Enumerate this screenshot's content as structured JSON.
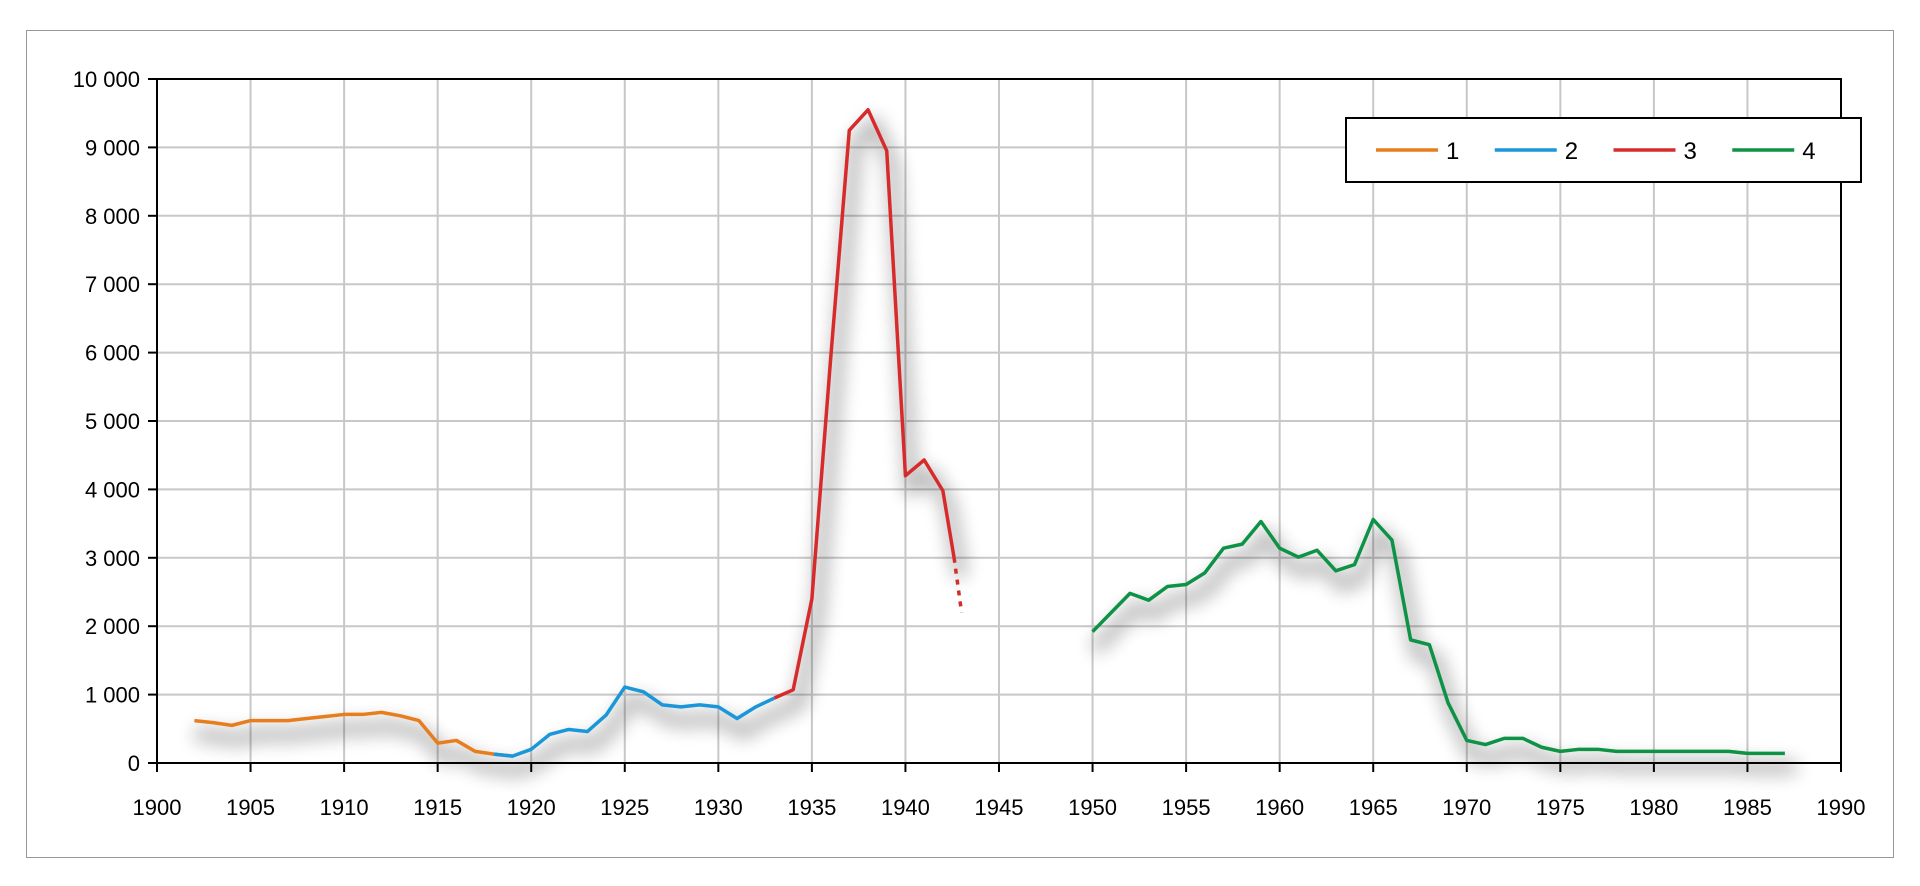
{
  "chart_data": {
    "type": "line",
    "title": "",
    "xlabel": "",
    "ylabel": "",
    "xlim": [
      1900,
      1990
    ],
    "ylim": [
      0,
      10000
    ],
    "x_ticks": [
      1900,
      1905,
      1910,
      1915,
      1920,
      1925,
      1930,
      1935,
      1940,
      1945,
      1950,
      1955,
      1960,
      1965,
      1970,
      1975,
      1980,
      1985,
      1990
    ],
    "x_tick_labels": [
      "1900",
      "1905",
      "1910",
      "1915",
      "1920",
      "1925",
      "1930",
      "1935",
      "1940",
      "1945",
      "1950",
      "1955",
      "1960",
      "1965",
      "1970",
      "1975",
      "1980",
      "1985",
      "1990"
    ],
    "y_ticks": [
      0,
      1000,
      2000,
      3000,
      4000,
      5000,
      6000,
      7000,
      8000,
      9000,
      10000
    ],
    "y_tick_labels": [
      "0",
      "1 000",
      "2 000",
      "3 000",
      "4 000",
      "5 000",
      "6 000",
      "7 000",
      "8 000",
      "9 000",
      "10 000"
    ],
    "grid": true,
    "legend_position": "top-right",
    "series": [
      {
        "name": "1",
        "color": "#e87d1e",
        "points": [
          [
            1902,
            620
          ],
          [
            1903,
            590
          ],
          [
            1904,
            550
          ],
          [
            1905,
            620
          ],
          [
            1906,
            620
          ],
          [
            1907,
            620
          ],
          [
            1908,
            650
          ],
          [
            1909,
            680
          ],
          [
            1910,
            710
          ],
          [
            1911,
            710
          ],
          [
            1912,
            740
          ],
          [
            1913,
            690
          ],
          [
            1914,
            620
          ],
          [
            1915,
            290
          ],
          [
            1916,
            330
          ],
          [
            1917,
            170
          ],
          [
            1918,
            130
          ],
          [
            1919,
            100
          ]
        ]
      },
      {
        "name": "2",
        "color": "#1a97d8",
        "points": [
          [
            1918,
            130
          ],
          [
            1919,
            100
          ],
          [
            1920,
            200
          ],
          [
            1921,
            420
          ],
          [
            1922,
            490
          ],
          [
            1923,
            460
          ],
          [
            1924,
            700
          ],
          [
            1925,
            1110
          ],
          [
            1926,
            1040
          ],
          [
            1927,
            850
          ],
          [
            1928,
            820
          ],
          [
            1929,
            850
          ],
          [
            1930,
            820
          ],
          [
            1931,
            650
          ],
          [
            1932,
            820
          ],
          [
            1933,
            950
          ]
        ]
      },
      {
        "name": "3",
        "color": "#d72b2b",
        "points": [
          [
            1933,
            950
          ],
          [
            1934,
            1070
          ],
          [
            1935,
            2400
          ],
          [
            1936,
            5900
          ],
          [
            1937,
            9250
          ],
          [
            1938,
            9550
          ],
          [
            1939,
            8950
          ],
          [
            1940,
            4200
          ],
          [
            1941,
            4430
          ],
          [
            1942,
            3980
          ],
          [
            1942.6,
            3000
          ]
        ],
        "dashed_points": [
          [
            1942.6,
            3000
          ],
          [
            1943,
            2200
          ]
        ]
      },
      {
        "name": "4",
        "color": "#0e9245",
        "points": [
          [
            1950,
            1920
          ],
          [
            1951,
            2200
          ],
          [
            1952,
            2480
          ],
          [
            1953,
            2380
          ],
          [
            1954,
            2580
          ],
          [
            1955,
            2610
          ],
          [
            1956,
            2780
          ],
          [
            1957,
            3140
          ],
          [
            1958,
            3200
          ],
          [
            1959,
            3530
          ],
          [
            1960,
            3140
          ],
          [
            1961,
            3010
          ],
          [
            1962,
            3110
          ],
          [
            1963,
            2810
          ],
          [
            1964,
            2900
          ],
          [
            1965,
            3560
          ],
          [
            1966,
            3260
          ],
          [
            1967,
            1800
          ],
          [
            1968,
            1730
          ],
          [
            1969,
            880
          ],
          [
            1970,
            330
          ],
          [
            1971,
            270
          ],
          [
            1972,
            360
          ],
          [
            1973,
            360
          ],
          [
            1974,
            230
          ],
          [
            1975,
            170
          ],
          [
            1976,
            200
          ],
          [
            1977,
            200
          ],
          [
            1978,
            170
          ],
          [
            1979,
            170
          ],
          [
            1980,
            170
          ],
          [
            1981,
            170
          ],
          [
            1982,
            170
          ],
          [
            1983,
            170
          ],
          [
            1984,
            170
          ],
          [
            1985,
            140
          ],
          [
            1986,
            140
          ],
          [
            1987,
            140
          ]
        ]
      }
    ]
  }
}
